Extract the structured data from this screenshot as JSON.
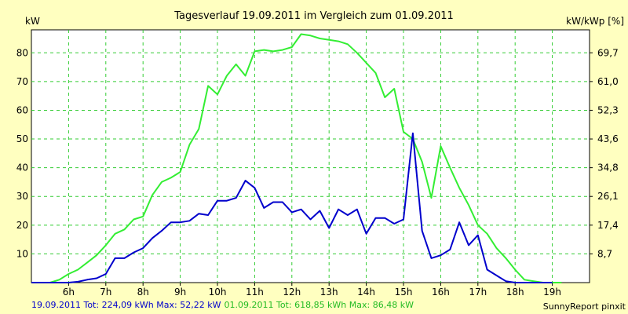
{
  "chart_data": {
    "type": "line",
    "title": "Tagesverlauf 19.09.2011 im Vergleich zum 01.09.2011",
    "ylabel_left": "kW",
    "ylabel_right": "kW/kWp [%]",
    "credit": "SunnyReport pinxit",
    "xlim": [
      5.0,
      20.0
    ],
    "ylim": [
      0,
      88
    ],
    "grid": true,
    "x_ticks": [
      {
        "x": 6,
        "label": "6h"
      },
      {
        "x": 7,
        "label": "7h"
      },
      {
        "x": 8,
        "label": "8h"
      },
      {
        "x": 9,
        "label": "9h"
      },
      {
        "x": 10,
        "label": "10h"
      },
      {
        "x": 11,
        "label": "11h"
      },
      {
        "x": 12,
        "label": "12h"
      },
      {
        "x": 13,
        "label": "13h"
      },
      {
        "x": 14,
        "label": "14h"
      },
      {
        "x": 15,
        "label": "15h"
      },
      {
        "x": 16,
        "label": "16h"
      },
      {
        "x": 17,
        "label": "17h"
      },
      {
        "x": 18,
        "label": "18h"
      },
      {
        "x": 19,
        "label": "19h"
      }
    ],
    "y_ticks_left": [
      {
        "y": 10,
        "label": "10"
      },
      {
        "y": 20,
        "label": "20"
      },
      {
        "y": 30,
        "label": "30"
      },
      {
        "y": 40,
        "label": "40"
      },
      {
        "y": 50,
        "label": "50"
      },
      {
        "y": 60,
        "label": "60"
      },
      {
        "y": 70,
        "label": "70"
      },
      {
        "y": 80,
        "label": "80"
      }
    ],
    "y_ticks_right": [
      {
        "y": 10,
        "label": "8,7"
      },
      {
        "y": 20,
        "label": "17,4"
      },
      {
        "y": 30,
        "label": "26,1"
      },
      {
        "y": 40,
        "label": "34,8"
      },
      {
        "y": 50,
        "label": "43,6"
      },
      {
        "y": 60,
        "label": "52,3"
      },
      {
        "y": 70,
        "label": "61,0"
      },
      {
        "y": 80,
        "label": "69,7"
      }
    ],
    "series": [
      {
        "name": "19.09.2011",
        "legend": "19.09.2011 Tot: 224,09 kWh Max: 52,22 kW",
        "color": "#0000cc",
        "x": [
          5.0,
          5.5,
          5.75,
          6.0,
          6.25,
          6.5,
          6.75,
          7.0,
          7.25,
          7.5,
          7.75,
          8.0,
          8.25,
          8.5,
          8.75,
          9.0,
          9.25,
          9.5,
          9.75,
          10.0,
          10.25,
          10.5,
          10.75,
          11.0,
          11.25,
          11.5,
          11.75,
          12.0,
          12.25,
          12.5,
          12.75,
          13.0,
          13.25,
          13.5,
          13.75,
          14.0,
          14.25,
          14.5,
          14.75,
          15.0,
          15.25,
          15.5,
          15.75,
          16.0,
          16.25,
          16.5,
          16.75,
          17.0,
          17.25,
          17.5,
          17.75,
          18.0,
          18.25,
          18.5,
          19.0
        ],
        "y": [
          0,
          0,
          0,
          0,
          0.3,
          1,
          1.5,
          3,
          8.5,
          8.5,
          10.5,
          12,
          15.5,
          18,
          21,
          21,
          21.5,
          24,
          23.5,
          28.5,
          28.5,
          29.5,
          35.5,
          33,
          26,
          28,
          28,
          24.5,
          25.5,
          22,
          25,
          19,
          25.5,
          23.5,
          25.5,
          17,
          22.5,
          22.5,
          20.5,
          22,
          52,
          18,
          8.5,
          9.5,
          11.5,
          21,
          13,
          16.5,
          4.5,
          2.5,
          0.5,
          0,
          0,
          0,
          0
        ]
      },
      {
        "name": "01.09.2011",
        "legend": "01.09.2011 Tot: 618,85 kWh Max: 86,48 kW",
        "color": "#33ee33",
        "x": [
          5.0,
          5.5,
          5.75,
          6.0,
          6.25,
          6.5,
          6.75,
          7.0,
          7.25,
          7.5,
          7.75,
          8.0,
          8.25,
          8.5,
          8.75,
          9.0,
          9.25,
          9.5,
          9.75,
          10.0,
          10.25,
          10.5,
          10.75,
          11.0,
          11.25,
          11.5,
          11.75,
          12.0,
          12.25,
          12.5,
          12.75,
          13.0,
          13.25,
          13.5,
          13.75,
          14.0,
          14.25,
          14.5,
          14.75,
          15.0,
          15.25,
          15.5,
          15.75,
          16.0,
          16.25,
          16.5,
          16.75,
          17.0,
          17.25,
          17.5,
          17.75,
          18.0,
          18.25,
          18.5,
          18.75,
          19.0,
          19.25
        ],
        "y": [
          0,
          0,
          1,
          3,
          4.5,
          7,
          9.5,
          13,
          17,
          18.5,
          22,
          23,
          30.5,
          35,
          36.5,
          38.5,
          48,
          53.5,
          68.5,
          65.5,
          72,
          76,
          72,
          80.5,
          81,
          80.5,
          81,
          82,
          86.5,
          86,
          85,
          84.5,
          84,
          83,
          80,
          76.5,
          73,
          64.5,
          67.5,
          52.5,
          50,
          42,
          29.5,
          47.5,
          40,
          33,
          27,
          20,
          17,
          12,
          8.5,
          4.5,
          1,
          0.5,
          0,
          0,
          0
        ]
      }
    ]
  }
}
